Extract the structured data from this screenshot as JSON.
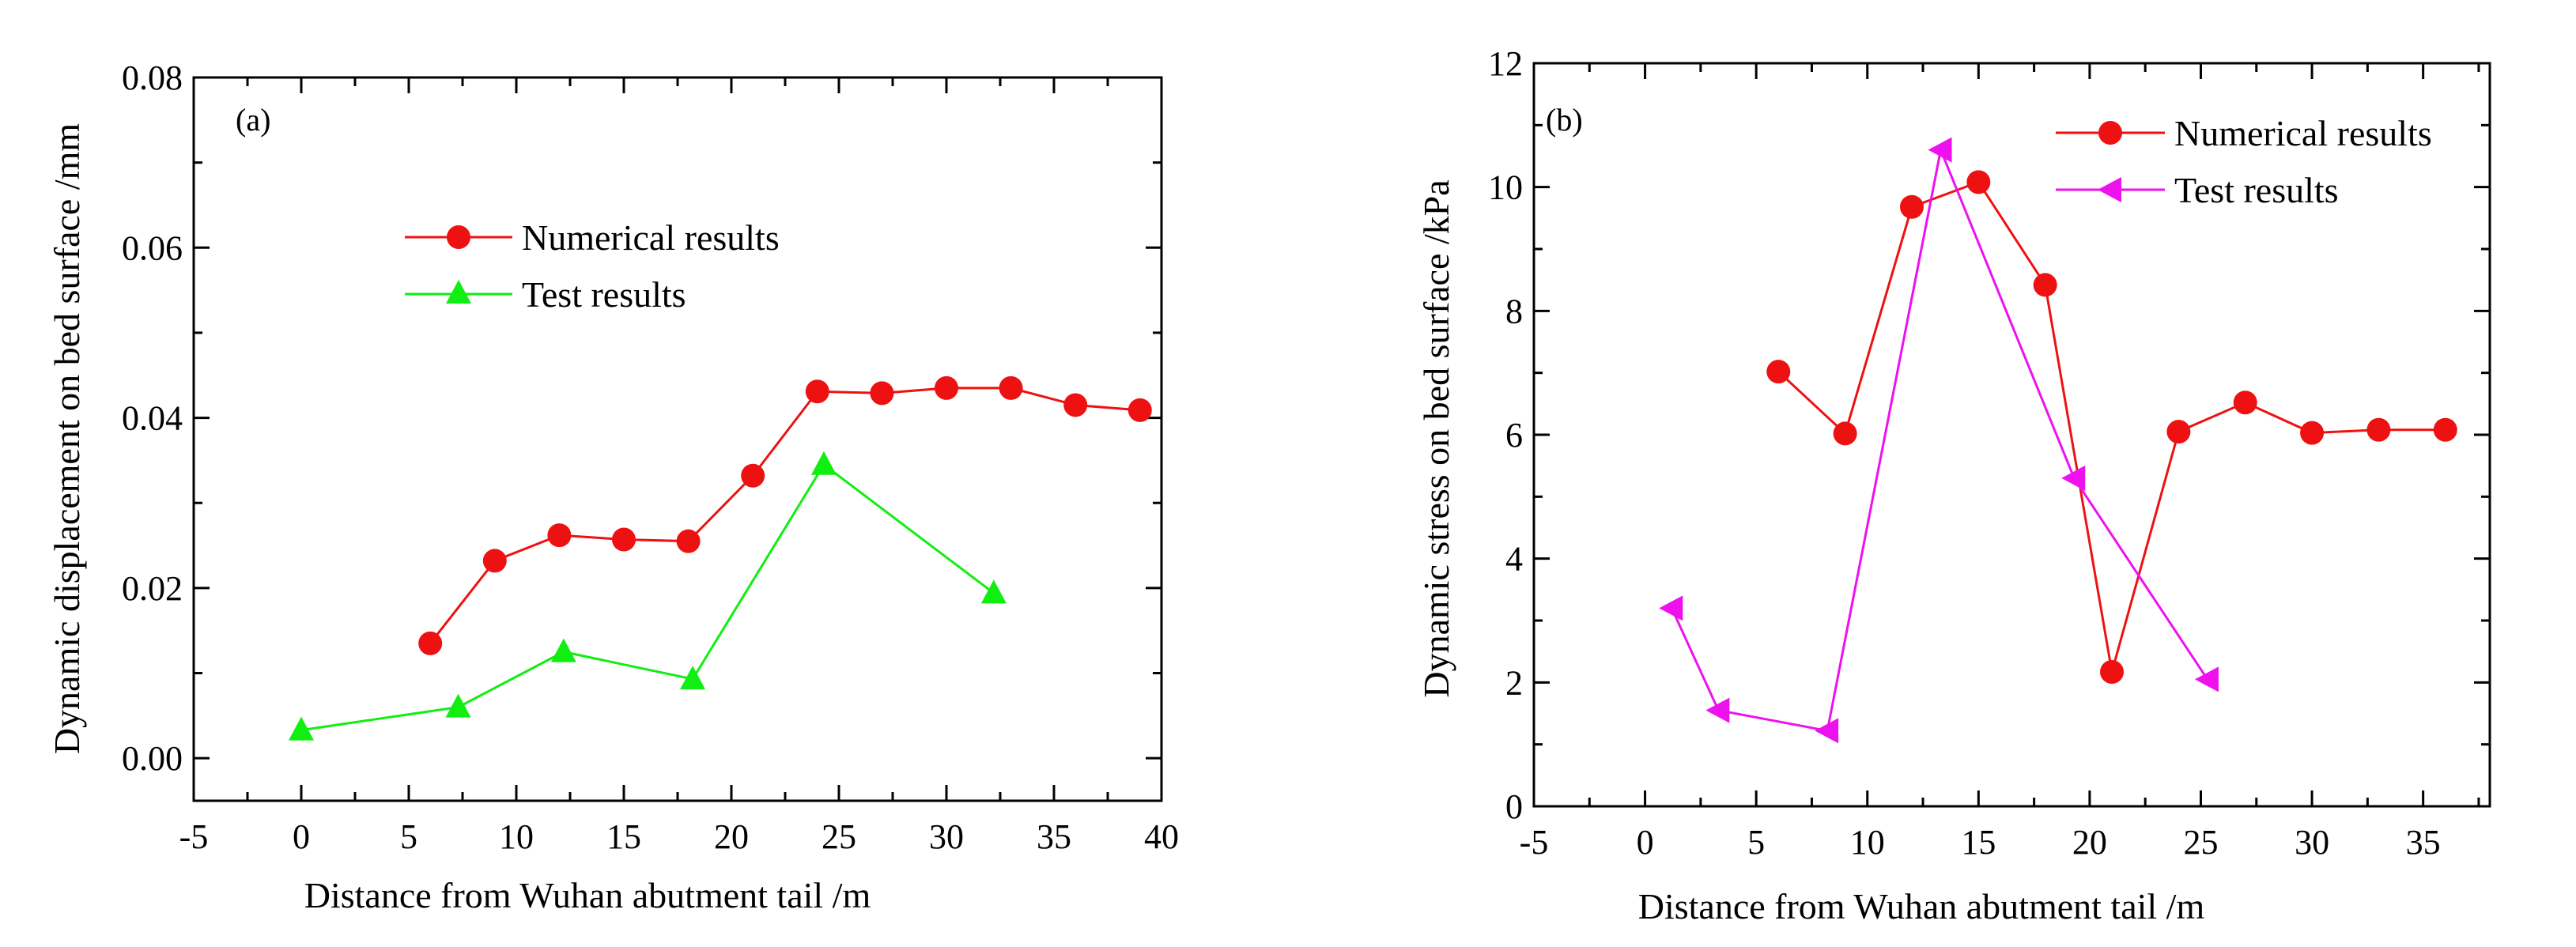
{
  "chart_data": [
    {
      "type": "line",
      "panel_label": "(a)",
      "xlabel": "Distance from Wuhan abutment tail /m",
      "ylabel": "Dynamic displacement on bed surface /mm",
      "xlim": [
        -5,
        40
      ],
      "ylim": [
        -0.005,
        0.08
      ],
      "x_ticks": [
        -5,
        0,
        5,
        10,
        15,
        20,
        25,
        30,
        35,
        40
      ],
      "x_tick_labels": [
        "-5",
        "0",
        "5",
        "10",
        "15",
        "20",
        "25",
        "30",
        "35",
        "40"
      ],
      "y_ticks": [
        0,
        0.02,
        0.04,
        0.06,
        0.08
      ],
      "y_tick_labels": [
        "0.00",
        "0.02",
        "0.04",
        "0.06",
        "0.08"
      ],
      "grid": false,
      "legend_position": "upper-left",
      "series": [
        {
          "name": "Numerical results",
          "color": "#ee1111",
          "marker": "circle",
          "x": [
            6,
            9,
            12,
            15,
            18,
            21,
            24,
            27,
            30,
            33,
            36,
            39
          ],
          "y": [
            0.0135,
            0.0232,
            0.0262,
            0.0257,
            0.0255,
            0.0332,
            0.0431,
            0.0429,
            0.0435,
            0.0435,
            0.0415,
            0.0409
          ]
        },
        {
          "name": "Test results",
          "color": "#11ee11",
          "marker": "triangle-up",
          "x": [
            0,
            7.3,
            12.2,
            18.2,
            24.3,
            32.2
          ],
          "y": [
            0.0033,
            0.006,
            0.0125,
            0.0093,
            0.0345,
            0.0194
          ]
        }
      ]
    },
    {
      "type": "line",
      "panel_label": "(b)",
      "xlabel": "Distance from Wuhan abutment tail /m",
      "ylabel": "Dynamic stress on bed surface /kPa",
      "xlim": [
        -5,
        38
      ],
      "ylim": [
        0,
        12
      ],
      "x_ticks": [
        -5,
        0,
        5,
        10,
        15,
        20,
        25,
        30,
        35
      ],
      "x_tick_labels": [
        "-5",
        "0",
        "5",
        "10",
        "15",
        "20",
        "25",
        "30",
        "35"
      ],
      "y_ticks": [
        0,
        2,
        4,
        6,
        8,
        10,
        12
      ],
      "y_tick_labels": [
        "0",
        "2",
        "4",
        "6",
        "8",
        "10",
        "12"
      ],
      "grid": false,
      "legend_position": "upper-right",
      "series": [
        {
          "name": "Numerical results",
          "color": "#ee1111",
          "marker": "circle",
          "x": [
            6,
            9,
            12,
            15,
            18,
            21,
            24,
            27,
            30,
            33,
            36
          ],
          "y": [
            7.02,
            6.02,
            9.68,
            10.08,
            8.42,
            2.17,
            6.05,
            6.52,
            6.03,
            6.08,
            6.08
          ]
        },
        {
          "name": "Test results",
          "color": "#ee11ee",
          "marker": "triangle-left",
          "x": [
            1.2,
            3.3,
            8.2,
            13.3,
            19.3,
            25.3
          ],
          "y": [
            3.2,
            1.55,
            1.22,
            10.6,
            5.3,
            2.05
          ]
        }
      ]
    }
  ]
}
